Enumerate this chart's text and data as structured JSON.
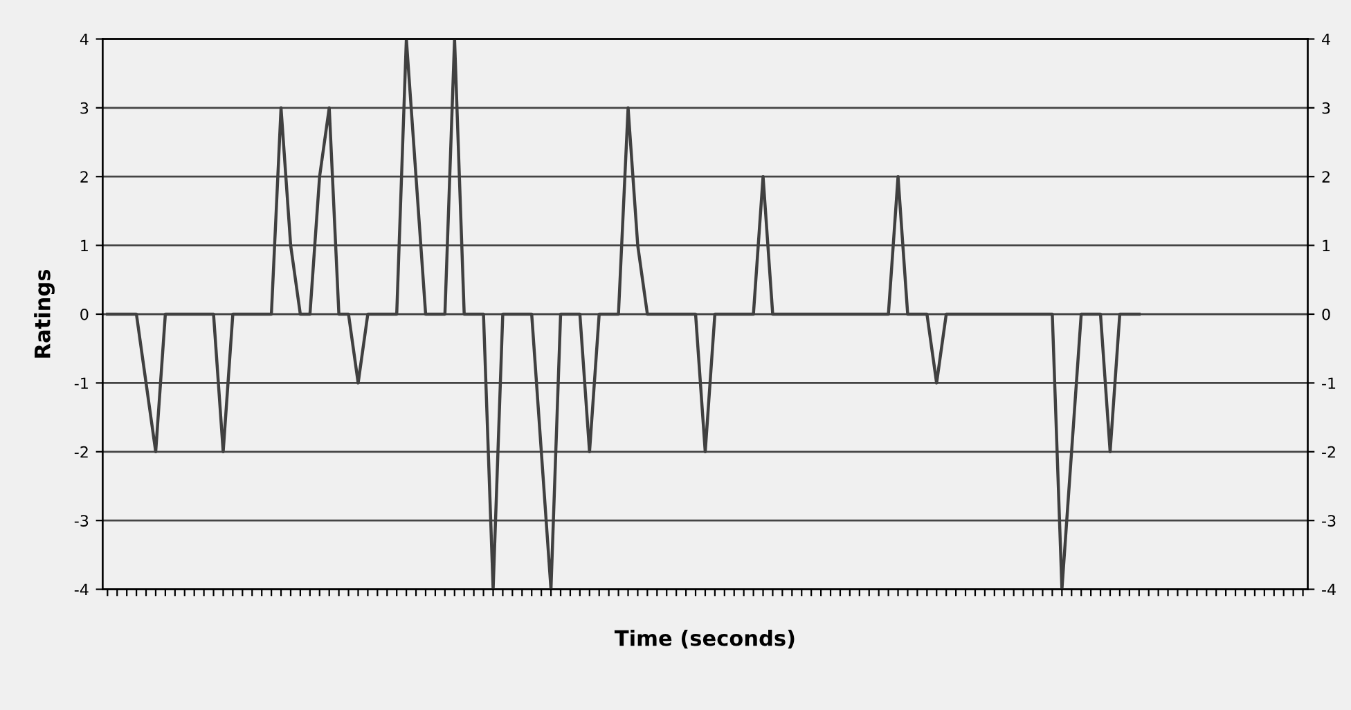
{
  "chart_data": {
    "type": "line",
    "xlabel": "Time (seconds)",
    "ylabel": "Ratings",
    "categories": [
      null,
      null,
      null,
      null,
      null,
      null,
      null,
      null,
      null,
      null,
      null,
      null,
      null,
      null,
      null,
      null,
      null,
      null,
      null,
      null,
      null,
      null,
      null,
      null,
      null,
      null,
      null,
      null,
      null,
      null,
      null,
      null,
      null,
      null,
      null,
      null,
      null,
      null,
      null,
      null,
      null,
      null,
      null,
      null,
      null,
      null,
      null,
      null,
      null,
      null,
      null,
      null,
      null,
      null,
      null,
      null,
      null,
      null,
      null,
      null,
      null,
      null,
      null,
      null,
      null,
      null,
      null,
      null,
      null,
      null,
      null,
      null,
      null,
      null,
      null,
      null,
      null,
      null,
      null,
      null,
      null,
      null,
      null,
      null,
      null,
      null,
      null,
      null,
      null,
      null,
      null,
      null,
      null,
      null,
      null,
      null,
      null,
      null,
      null,
      null,
      null,
      null,
      null,
      null,
      null,
      null,
      null,
      null,
      null,
      null,
      null,
      null,
      null,
      null,
      null,
      null,
      null,
      null,
      null,
      null,
      null,
      null,
      null,
      null,
      null
    ],
    "series": [
      {
        "color": "#404040",
        "values": [
          0,
          0,
          0,
          0,
          -1,
          -2,
          0,
          0,
          0,
          0,
          0,
          0,
          -2,
          0,
          0,
          0,
          0,
          0,
          3,
          1,
          0,
          0,
          2,
          3,
          0,
          0,
          -1,
          0,
          0,
          0,
          0,
          4,
          2,
          0,
          0,
          0,
          4,
          0,
          0,
          0,
          -4,
          0,
          0,
          0,
          0,
          -2,
          -4,
          0,
          0,
          0,
          -2,
          0,
          0,
          0,
          3,
          1,
          0,
          0,
          0,
          0,
          0,
          0,
          -2,
          0,
          0,
          0,
          0,
          0,
          2,
          0,
          0,
          0,
          0,
          0,
          0,
          0,
          0,
          0,
          0,
          0,
          0,
          0,
          2,
          0,
          0,
          0,
          -1,
          0,
          0,
          0,
          0,
          0,
          0,
          0,
          0,
          0,
          0,
          0,
          0,
          -4,
          -2,
          0,
          0,
          0,
          -2,
          0,
          0,
          0,
          null,
          null,
          null,
          null,
          null,
          null,
          null,
          null,
          null,
          null,
          null,
          null,
          null,
          null,
          null,
          null,
          null
        ]
      }
    ],
    "ylim": [
      -4,
      4
    ],
    "yticks": [
      -4,
      -3,
      -2,
      -1,
      0,
      1,
      2,
      3,
      4
    ],
    "y2lim": [
      -4,
      4
    ],
    "y2ticks": [
      -4,
      -3,
      -2,
      -1,
      0,
      1,
      2,
      3,
      4
    ],
    "grid": "y",
    "marker": "none",
    "line_style": "solid",
    "legend": false
  }
}
